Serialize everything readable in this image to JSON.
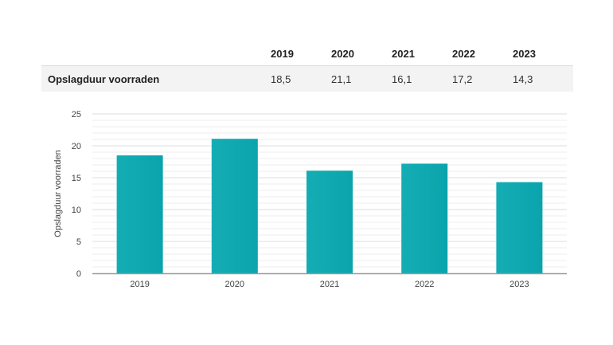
{
  "table": {
    "years": [
      "2019",
      "2020",
      "2021",
      "2022",
      "2023"
    ],
    "row_label": "Opslagduur voorraden",
    "values": [
      "18,5",
      "21,1",
      "16,1",
      "17,2",
      "14,3"
    ]
  },
  "chart_data": {
    "type": "bar",
    "categories": [
      "2019",
      "2020",
      "2021",
      "2022",
      "2023"
    ],
    "values": [
      18.5,
      21.1,
      16.1,
      17.2,
      14.3
    ],
    "title": "",
    "xlabel": "",
    "ylabel": "Opslagduur voorraden",
    "ylim": [
      0,
      25
    ],
    "yticks": [
      0,
      5,
      10,
      15,
      20,
      25
    ],
    "grid": true,
    "bar_color": "#19b3ba"
  }
}
